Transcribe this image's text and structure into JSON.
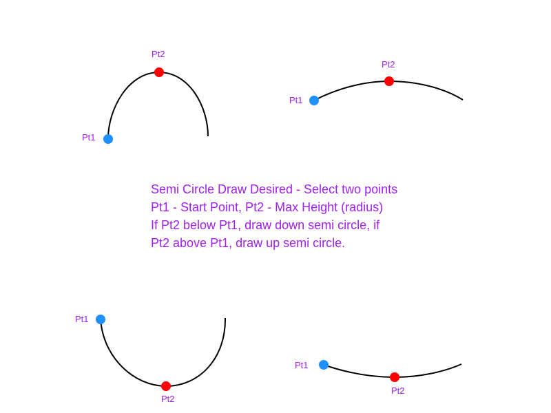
{
  "colors": {
    "text": "#a020f0",
    "start_point": "#1e90ff",
    "max_point": "#ff0000",
    "curve": "#000000",
    "background": "#ffffff"
  },
  "labels": {
    "pt1": "Pt1",
    "pt2": "Pt2"
  },
  "description": {
    "line1": "Semi Circle Draw Desired - Select two points",
    "line2": "Pt1 - Start Point, Pt2 - Max Height (radius)",
    "line3": "If Pt2 below Pt1, draw down semi circle, if",
    "line4": "Pt2 above Pt1, draw up semi circle."
  }
}
